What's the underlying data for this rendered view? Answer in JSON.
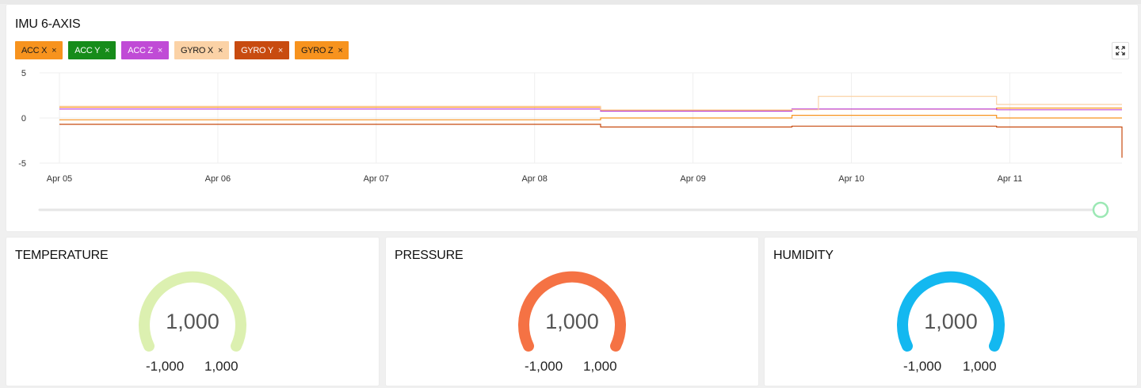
{
  "imu": {
    "title": "IMU 6-AXIS",
    "chips": [
      {
        "label": "ACC X",
        "bg": "#f7931e",
        "fg": "#1a1a1a"
      },
      {
        "label": "ACC Y",
        "bg": "#168c1a",
        "fg": "#ffffff"
      },
      {
        "label": "ACC Z",
        "bg": "#c04bd6",
        "fg": "#ffffff"
      },
      {
        "label": "GYRO X",
        "bg": "#fbd2a6",
        "fg": "#1a1a1a"
      },
      {
        "label": "GYRO Y",
        "bg": "#c84b10",
        "fg": "#ffffff"
      },
      {
        "label": "GYRO Z",
        "bg": "#f7931e",
        "fg": "#1a1a1a"
      }
    ],
    "close_glyph": "×",
    "expand_icon": "expand-icon",
    "slider_value": 1.0
  },
  "chart_data": {
    "type": "line",
    "ylim": [
      -5,
      5
    ],
    "xlim": [
      "Apr 04 21:00",
      "Apr 11 17:00"
    ],
    "y_ticks": [
      "5",
      "0",
      "-5"
    ],
    "y_tick_values": [
      5,
      0,
      -5
    ],
    "x_ticks": [
      "Apr 05",
      "Apr 06",
      "Apr 07",
      "Apr 08",
      "Apr 09",
      "Apr 10",
      "Apr 11"
    ],
    "grid": true,
    "series": [
      {
        "name": "ACC X",
        "color": "#f7931e",
        "points": [
          [
            "Apr 05 00:00",
            1.2
          ],
          [
            "Apr 08 10:00",
            1.2
          ],
          [
            "Apr 08 10:00",
            0.8
          ],
          [
            "Apr 09 15:00",
            0.8
          ],
          [
            "Apr 09 15:00",
            1.0
          ],
          [
            "Apr 10 22:00",
            1.0
          ],
          [
            "Apr 10 22:00",
            1.1
          ],
          [
            "Apr 11 17:00",
            1.1
          ]
        ]
      },
      {
        "name": "ACC Z",
        "color": "#c04bd6",
        "points": [
          [
            "Apr 05 00:00",
            1.0
          ],
          [
            "Apr 08 10:00",
            1.0
          ],
          [
            "Apr 08 10:00",
            0.75
          ],
          [
            "Apr 09 15:00",
            0.75
          ],
          [
            "Apr 09 15:00",
            1.0
          ],
          [
            "Apr 10 22:00",
            1.0
          ],
          [
            "Apr 10 22:00",
            0.9
          ],
          [
            "Apr 11 17:00",
            0.9
          ]
        ]
      },
      {
        "name": "GYRO X",
        "color": "#fbd2a6",
        "points": [
          [
            "Apr 05 00:00",
            1.3
          ],
          [
            "Apr 08 10:00",
            1.3
          ],
          [
            "Apr 08 10:00",
            0.9
          ],
          [
            "Apr 09 19:00",
            0.9
          ],
          [
            "Apr 09 19:00",
            2.4
          ],
          [
            "Apr 10 22:00",
            2.4
          ],
          [
            "Apr 10 22:00",
            1.5
          ],
          [
            "Apr 11 17:00",
            1.5
          ]
        ]
      },
      {
        "name": "GYRO Y",
        "color": "#c84b10",
        "points": [
          [
            "Apr 05 00:00",
            -0.7
          ],
          [
            "Apr 08 10:00",
            -0.7
          ],
          [
            "Apr 08 10:00",
            -1.0
          ],
          [
            "Apr 09 15:00",
            -1.0
          ],
          [
            "Apr 09 15:00",
            -0.9
          ],
          [
            "Apr 10 22:00",
            -0.9
          ],
          [
            "Apr 10 22:00",
            -1.0
          ],
          [
            "Apr 11 17:00",
            -1.0
          ],
          [
            "Apr 11 17:00",
            -4.4
          ]
        ]
      },
      {
        "name": "GYRO Z",
        "color": "#f7931e",
        "points": [
          [
            "Apr 05 00:00",
            -0.2
          ],
          [
            "Apr 08 10:00",
            -0.2
          ],
          [
            "Apr 08 10:00",
            0.0
          ],
          [
            "Apr 09 15:00",
            0.0
          ],
          [
            "Apr 09 15:00",
            0.3
          ],
          [
            "Apr 10 22:00",
            0.3
          ],
          [
            "Apr 10 22:00",
            0.0
          ],
          [
            "Apr 11 17:00",
            0.0
          ]
        ]
      }
    ]
  },
  "gauges": [
    {
      "title": "TEMPERATURE",
      "value": "1,000",
      "min": "-1,000",
      "max": "1,000",
      "color": "#dcf0b0"
    },
    {
      "title": "PRESSURE",
      "value": "1,000",
      "min": "-1,000",
      "max": "1,000",
      "color": "#f57244"
    },
    {
      "title": "HUMIDITY",
      "value": "1,000",
      "min": "-1,000",
      "max": "1,000",
      "color": "#13b8f0"
    }
  ]
}
